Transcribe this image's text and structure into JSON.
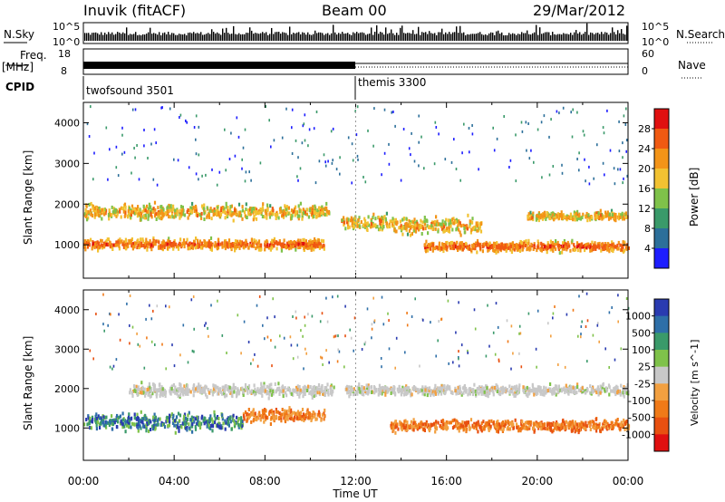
{
  "header": {
    "radar_title": "Inuvik (fitACF)",
    "beam_title": "Beam 00",
    "date": "29/Mar/2012"
  },
  "top_panels": {
    "nsky_label": "N.Sky",
    "nsky_ticks": [
      "10^5",
      "10^0"
    ],
    "nsearch_label": "N.Search",
    "nsearch_ticks": [
      "10^5",
      "10^0"
    ],
    "freq_label": "Freq.",
    "freq_unit": "[MHz]",
    "freq_ticks": [
      "18",
      "8"
    ],
    "nave_label": "Nave",
    "nave_ticks": [
      "60",
      "0"
    ],
    "cpid_label": "CPID",
    "cpid_segments": [
      {
        "name": "twofsound 3501",
        "start_hour": 0,
        "end_hour": 12
      },
      {
        "name": "themis 3300",
        "start_hour": 12,
        "end_hour": 24
      }
    ]
  },
  "chart_data": [
    {
      "type": "heatmap",
      "panel": "power",
      "ylabel": "Slant Range [km]",
      "xlabel": "Time UT",
      "x_ticks": [
        "00:00",
        "04:00",
        "08:00",
        "12:00",
        "16:00",
        "20:00",
        "00:00"
      ],
      "y_ticks": [
        "1000",
        "2000",
        "3000",
        "4000"
      ],
      "xlim_hours": [
        0,
        24
      ],
      "ylim_km": [
        180,
        4500
      ],
      "colorbar": {
        "label": "Power [dB]",
        "tick_labels": [
          "4",
          "8",
          "12",
          "16",
          "20",
          "24",
          "28"
        ],
        "range": [
          0,
          32
        ],
        "colors": [
          "#1d1dff",
          "#2c6f9a",
          "#3a9a6a",
          "#7fc24a",
          "#f2c232",
          "#f39418",
          "#f05a12",
          "#e01010"
        ]
      },
      "bands": [
        {
          "range_km": 1050,
          "spread_km": 180,
          "start_hour": 0,
          "end_hour": 10.6,
          "level": "high"
        },
        {
          "range_km": 1850,
          "spread_km": 250,
          "start_hour": 0,
          "end_hour": 10.8,
          "level": "medium"
        },
        {
          "range_km": 1600,
          "spread_km": 250,
          "start_hour": 11.3,
          "end_hour": 13.5,
          "level": "medium"
        },
        {
          "range_km": 1500,
          "spread_km": 280,
          "start_hour": 13.5,
          "end_hour": 17.5,
          "level": "medium"
        },
        {
          "range_km": 1000,
          "spread_km": 180,
          "start_hour": 15,
          "end_hour": 24,
          "level": "high"
        },
        {
          "range_km": 1750,
          "spread_km": 150,
          "start_hour": 19.5,
          "end_hour": 24,
          "level": "medium"
        }
      ]
    },
    {
      "type": "heatmap",
      "panel": "velocity",
      "ylabel": "Slant Range [km]",
      "xlabel": "Time UT",
      "x_ticks": [
        "00:00",
        "04:00",
        "08:00",
        "12:00",
        "16:00",
        "20:00",
        "00:00"
      ],
      "y_ticks": [
        "1000",
        "2000",
        "3000",
        "4000"
      ],
      "xlim_hours": [
        0,
        24
      ],
      "ylim_km": [
        180,
        4500
      ],
      "colorbar": {
        "label": "Velocity [m s^-1]",
        "tick_labels": [
          "1000",
          "500",
          "100",
          "25",
          "-25",
          "-100",
          "-500",
          "-1000"
        ],
        "colors": [
          "#2a3bb0",
          "#2e6fa8",
          "#3a9a6a",
          "#7fc24a",
          "#c8c8c8",
          "#f2a040",
          "#f07a18",
          "#e85010",
          "#e01010"
        ]
      },
      "bands": [
        {
          "range_km": 1200,
          "spread_km": 300,
          "start_hour": 0,
          "end_hour": 7,
          "level": "positive"
        },
        {
          "range_km": 1350,
          "spread_km": 250,
          "start_hour": 7,
          "end_hour": 10.6,
          "level": "negative"
        },
        {
          "range_km": 2000,
          "spread_km": 220,
          "start_hour": 2,
          "end_hour": 11,
          "level": "neutral"
        },
        {
          "range_km": 1100,
          "spread_km": 200,
          "start_hour": 13.5,
          "end_hour": 24,
          "level": "negative"
        },
        {
          "range_km": 2000,
          "spread_km": 180,
          "start_hour": 11.5,
          "end_hour": 24,
          "level": "neutral"
        }
      ]
    }
  ]
}
